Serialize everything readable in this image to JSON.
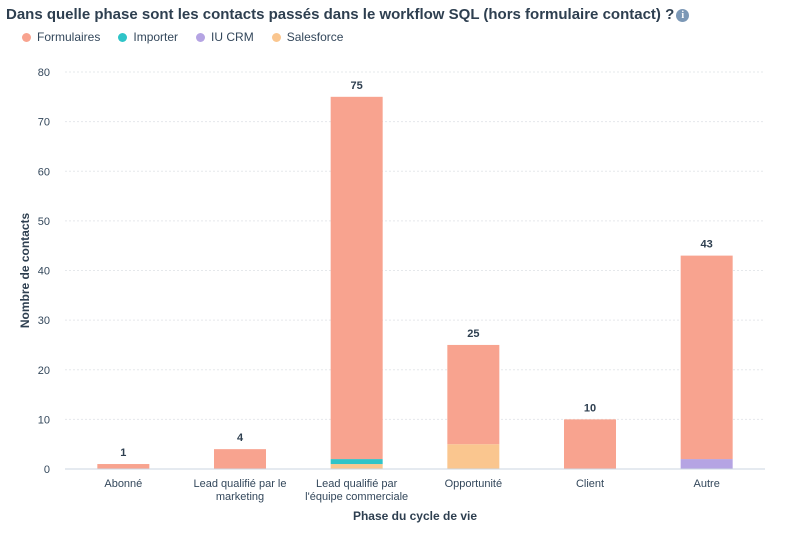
{
  "title": "Dans quelle phase sont les contacts passés dans le workflow SQL (hors formulaire contact) ?",
  "info_icon": "info-icon",
  "colors": {
    "Formulaires": "#f8a38f",
    "Importer": "#2fc4c8",
    "IU CRM": "#b5a4e3",
    "Salesforce": "#fac68f",
    "grid": "#e5e8eb",
    "axis": "#cbd6e2"
  },
  "chart_data": {
    "type": "bar",
    "stacked": true,
    "title": "Dans quelle phase sont les contacts passés dans le workflow SQL (hors formulaire contact) ?",
    "xlabel": "Phase du cycle de vie",
    "ylabel": "Nombre de contacts",
    "ylim": [
      0,
      80
    ],
    "yticks": [
      0,
      10,
      20,
      30,
      40,
      50,
      60,
      70,
      80
    ],
    "grid": true,
    "legend_position": "top-left",
    "categories": [
      [
        "Abonné"
      ],
      [
        "Lead qualifié par le",
        "marketing"
      ],
      [
        "Lead qualifié par",
        "l'équipe commerciale"
      ],
      [
        "Opportunité"
      ],
      [
        "Client"
      ],
      [
        "Autre"
      ]
    ],
    "totals": [
      1,
      4,
      75,
      25,
      10,
      43
    ],
    "series": [
      {
        "name": "Formulaires",
        "values": [
          1,
          4,
          73,
          20,
          10,
          41
        ]
      },
      {
        "name": "Importer",
        "values": [
          0,
          0,
          1,
          0,
          0,
          0
        ]
      },
      {
        "name": "IU CRM",
        "values": [
          0,
          0,
          0,
          0,
          0,
          2
        ]
      },
      {
        "name": "Salesforce",
        "values": [
          0,
          0,
          1,
          5,
          0,
          0
        ]
      }
    ]
  }
}
